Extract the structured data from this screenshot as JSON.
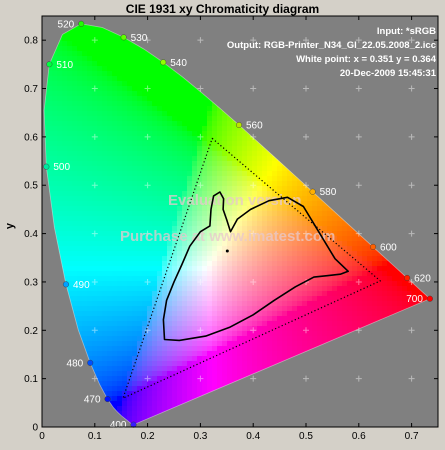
{
  "window": {
    "title": "CIE 1931 xy Chromaticity diagram"
  },
  "info": {
    "input": "Input:  *sRGB",
    "output": "Output: RGB-Printer_N34_Gl_22.05.2008_2.icc",
    "white_point": "White point:  x = 0.351  y = 0.364",
    "datetime": "20-Dec-2009 15:45:31"
  },
  "watermark": {
    "line1": "Evaluation version",
    "line2": "Purchase at www.imatest.com"
  },
  "colors": {
    "plot_background": "#808080",
    "figure_background": "#d4d0c8",
    "gamut_input": "#000000",
    "gamut_output": "#000000"
  },
  "chart_data": {
    "type": "scatter",
    "title": "CIE 1931 xy Chromaticity diagram",
    "xlabel": "",
    "ylabel": "y",
    "xlim": [
      0,
      0.75
    ],
    "ylim": [
      0,
      0.85
    ],
    "xticks": [
      "0",
      "0.1",
      "0.2",
      "0.3",
      "0.4",
      "0.5",
      "0.6",
      "0.7"
    ],
    "yticks": [
      "0",
      "0.1",
      "0.2",
      "0.3",
      "0.4",
      "0.5",
      "0.6",
      "0.7",
      "0.8"
    ],
    "grid": "plus-markers",
    "spectral_locus": [
      {
        "x": 0.1741,
        "y": 0.005
      },
      {
        "x": 0.1738,
        "y": 0.0049
      },
      {
        "x": 0.1736,
        "y": 0.0049
      },
      {
        "x": 0.1733,
        "y": 0.0048
      },
      {
        "x": 0.173,
        "y": 0.0048
      },
      {
        "x": 0.1726,
        "y": 0.0048
      },
      {
        "x": 0.1721,
        "y": 0.0048
      },
      {
        "x": 0.1714,
        "y": 0.0051
      },
      {
        "x": 0.1703,
        "y": 0.0058
      },
      {
        "x": 0.1689,
        "y": 0.0069
      },
      {
        "x": 0.1669,
        "y": 0.0086
      },
      {
        "x": 0.1644,
        "y": 0.0109
      },
      {
        "x": 0.1611,
        "y": 0.0138
      },
      {
        "x": 0.1566,
        "y": 0.0177
      },
      {
        "x": 0.151,
        "y": 0.0227
      },
      {
        "x": 0.144,
        "y": 0.0297
      },
      {
        "x": 0.1355,
        "y": 0.0399
      },
      {
        "x": 0.1241,
        "y": 0.0578
      },
      {
        "x": 0.1096,
        "y": 0.0868
      },
      {
        "x": 0.0913,
        "y": 0.1327
      },
      {
        "x": 0.0687,
        "y": 0.2007
      },
      {
        "x": 0.0454,
        "y": 0.295
      },
      {
        "x": 0.0235,
        "y": 0.4127
      },
      {
        "x": 0.0082,
        "y": 0.5384
      },
      {
        "x": 0.0039,
        "y": 0.6548
      },
      {
        "x": 0.0139,
        "y": 0.7502
      },
      {
        "x": 0.0389,
        "y": 0.812
      },
      {
        "x": 0.0743,
        "y": 0.8338
      },
      {
        "x": 0.1142,
        "y": 0.8262
      },
      {
        "x": 0.1547,
        "y": 0.8059
      },
      {
        "x": 0.1929,
        "y": 0.7816
      },
      {
        "x": 0.2296,
        "y": 0.7543
      },
      {
        "x": 0.2658,
        "y": 0.7243
      },
      {
        "x": 0.3016,
        "y": 0.6923
      },
      {
        "x": 0.3373,
        "y": 0.6589
      },
      {
        "x": 0.3731,
        "y": 0.6245
      },
      {
        "x": 0.4087,
        "y": 0.5896
      },
      {
        "x": 0.4441,
        "y": 0.5547
      },
      {
        "x": 0.4788,
        "y": 0.5202
      },
      {
        "x": 0.5125,
        "y": 0.4866
      },
      {
        "x": 0.5448,
        "y": 0.4544
      },
      {
        "x": 0.5752,
        "y": 0.4242
      },
      {
        "x": 0.6029,
        "y": 0.3965
      },
      {
        "x": 0.627,
        "y": 0.3725
      },
      {
        "x": 0.6482,
        "y": 0.3514
      },
      {
        "x": 0.6658,
        "y": 0.334
      },
      {
        "x": 0.6801,
        "y": 0.3197
      },
      {
        "x": 0.6915,
        "y": 0.3083
      },
      {
        "x": 0.7006,
        "y": 0.2993
      },
      {
        "x": 0.7079,
        "y": 0.292
      },
      {
        "x": 0.714,
        "y": 0.2859
      },
      {
        "x": 0.719,
        "y": 0.2809
      },
      {
        "x": 0.723,
        "y": 0.277
      },
      {
        "x": 0.726,
        "y": 0.274
      },
      {
        "x": 0.7283,
        "y": 0.2717
      },
      {
        "x": 0.73,
        "y": 0.27
      },
      {
        "x": 0.732,
        "y": 0.268
      },
      {
        "x": 0.7347,
        "y": 0.2653
      }
    ],
    "wavelength_markers": [
      {
        "label": "400",
        "x": 0.1733,
        "y": 0.0048,
        "color": "#3a1cff",
        "side": "left"
      },
      {
        "label": "470",
        "x": 0.1241,
        "y": 0.0578,
        "color": "#0012ff",
        "side": "left"
      },
      {
        "label": "480",
        "x": 0.0913,
        "y": 0.1327,
        "color": "#0050ff",
        "side": "left"
      },
      {
        "label": "490",
        "x": 0.0454,
        "y": 0.295,
        "color": "#00a0ff",
        "side": "right"
      },
      {
        "label": "500",
        "x": 0.0082,
        "y": 0.5384,
        "color": "#00e8a0",
        "side": "right"
      },
      {
        "label": "510",
        "x": 0.0139,
        "y": 0.7502,
        "color": "#00ff40",
        "side": "right"
      },
      {
        "label": "520",
        "x": 0.0743,
        "y": 0.8338,
        "color": "#20ff00",
        "side": "left"
      },
      {
        "label": "530",
        "x": 0.1547,
        "y": 0.8059,
        "color": "#60ff00",
        "side": "right"
      },
      {
        "label": "540",
        "x": 0.2296,
        "y": 0.7543,
        "color": "#90ff00",
        "side": "right"
      },
      {
        "label": "560",
        "x": 0.3731,
        "y": 0.6245,
        "color": "#b8e800",
        "side": "right"
      },
      {
        "label": "580",
        "x": 0.5125,
        "y": 0.4866,
        "color": "#ffb000",
        "side": "right"
      },
      {
        "label": "600",
        "x": 0.627,
        "y": 0.3725,
        "color": "#ff6000",
        "side": "right"
      },
      {
        "label": "620",
        "x": 0.6915,
        "y": 0.3083,
        "color": "#ff2000",
        "side": "right"
      },
      {
        "label": "700",
        "x": 0.7347,
        "y": 0.2653,
        "color": "#ff0000",
        "side": "left"
      }
    ],
    "series": [
      {
        "style": "dotted-triangle",
        "points": [
          {
            "x": 0.3223,
            "y": 0.5969
          },
          {
            "x": 0.6407,
            "y": 0.3021
          },
          {
            "x": 0.1535,
            "y": 0.0595
          }
        ]
      },
      {
        "style": "solid-polygon",
        "points": [
          {
            "x": 0.357,
            "y": 0.404
          },
          {
            "x": 0.37,
            "y": 0.43
          },
          {
            "x": 0.395,
            "y": 0.45
          },
          {
            "x": 0.43,
            "y": 0.468
          },
          {
            "x": 0.465,
            "y": 0.475
          },
          {
            "x": 0.495,
            "y": 0.456
          },
          {
            "x": 0.525,
            "y": 0.402
          },
          {
            "x": 0.555,
            "y": 0.348
          },
          {
            "x": 0.58,
            "y": 0.322
          },
          {
            "x": 0.565,
            "y": 0.316
          },
          {
            "x": 0.54,
            "y": 0.313
          },
          {
            "x": 0.515,
            "y": 0.31
          },
          {
            "x": 0.48,
            "y": 0.29
          },
          {
            "x": 0.44,
            "y": 0.262
          },
          {
            "x": 0.4,
            "y": 0.232
          },
          {
            "x": 0.355,
            "y": 0.206
          },
          {
            "x": 0.31,
            "y": 0.188
          },
          {
            "x": 0.26,
            "y": 0.179
          },
          {
            "x": 0.232,
            "y": 0.181
          },
          {
            "x": 0.23,
            "y": 0.222
          },
          {
            "x": 0.236,
            "y": 0.262
          },
          {
            "x": 0.25,
            "y": 0.3
          },
          {
            "x": 0.265,
            "y": 0.336
          },
          {
            "x": 0.28,
            "y": 0.374
          },
          {
            "x": 0.3,
            "y": 0.404
          },
          {
            "x": 0.318,
            "y": 0.416
          },
          {
            "x": 0.32,
            "y": 0.45
          },
          {
            "x": 0.325,
            "y": 0.478
          },
          {
            "x": 0.337,
            "y": 0.486
          },
          {
            "x": 0.344,
            "y": 0.472
          },
          {
            "x": 0.343,
            "y": 0.45
          },
          {
            "x": 0.35,
            "y": 0.428
          }
        ]
      }
    ],
    "white_point": {
      "x": 0.351,
      "y": 0.364
    }
  }
}
